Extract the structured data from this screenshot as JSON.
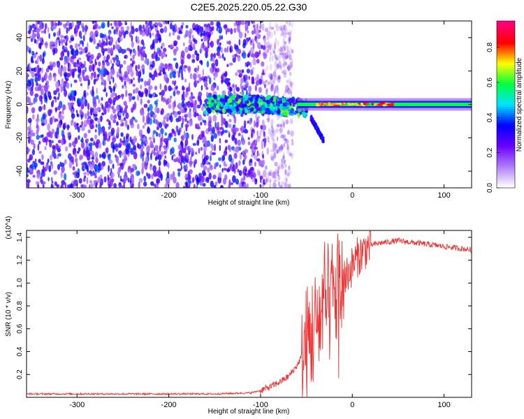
{
  "title": "C2E5.2025.220.05.22.G30",
  "colors": {
    "snr_line": "#ee3333",
    "colormap": [
      "#ffffff",
      "#b07cf8",
      "#6a00ff",
      "#0000ff",
      "#00e5ff",
      "#00ff40",
      "#ffff00",
      "#ff0000",
      "#ff0080"
    ]
  },
  "chart_data": [
    {
      "type": "heatmap",
      "name": "spectrogram",
      "xlabel": "Height of straight line (km)",
      "ylabel": "Frequency (Hz)",
      "xlim": [
        -355,
        130
      ],
      "ylim": [
        -50,
        50
      ],
      "x_ticks": [
        -300,
        -200,
        -100,
        0,
        100
      ],
      "y_ticks": [
        -40,
        -20,
        0,
        20,
        40
      ],
      "colorbar": {
        "label": "Normalized spectral amplitude",
        "range": [
          0,
          0.95
        ],
        "ticks": [
          0.0,
          0.2,
          0.4,
          0.6,
          0.8
        ]
      },
      "description_values": {
        "noise_region_x": [
          -355,
          -85
        ],
        "signal_line_x": [
          -60,
          130
        ],
        "signal_frequency": 0,
        "peak_amplitude": 0.95
      }
    },
    {
      "type": "line",
      "name": "snr",
      "xlabel": "Height of straight line (km)",
      "ylabel": "SNR (10 * v/v)",
      "y_multiplier": "(x10^4)",
      "xlim": [
        -355,
        130
      ],
      "ylim": [
        0,
        1.46
      ],
      "x_ticks": [
        -300,
        -200,
        -100,
        0,
        100
      ],
      "y_ticks": [
        0.2,
        0.4,
        0.6,
        0.8,
        1.0,
        1.2,
        1.4
      ],
      "series": [
        {
          "x": [
            -355,
            -300,
            -250,
            -200,
            -150,
            -110,
            -100,
            -90,
            -80,
            -70,
            -60,
            -50,
            -40,
            -35,
            -30,
            -25,
            -20,
            -15,
            -10,
            -5,
            0,
            5,
            10,
            15,
            20,
            25,
            30,
            40,
            50,
            60,
            70,
            80,
            90,
            100,
            110,
            120,
            130
          ],
          "y": [
            0.03,
            0.03,
            0.03,
            0.03,
            0.03,
            0.04,
            0.06,
            0.09,
            0.13,
            0.18,
            0.28,
            0.45,
            0.62,
            0.7,
            0.75,
            0.82,
            0.88,
            0.95,
            1.02,
            1.08,
            1.15,
            1.22,
            1.26,
            1.3,
            1.33,
            1.34,
            1.35,
            1.36,
            1.37,
            1.36,
            1.35,
            1.34,
            1.33,
            1.32,
            1.31,
            1.3,
            1.29
          ]
        }
      ]
    }
  ]
}
